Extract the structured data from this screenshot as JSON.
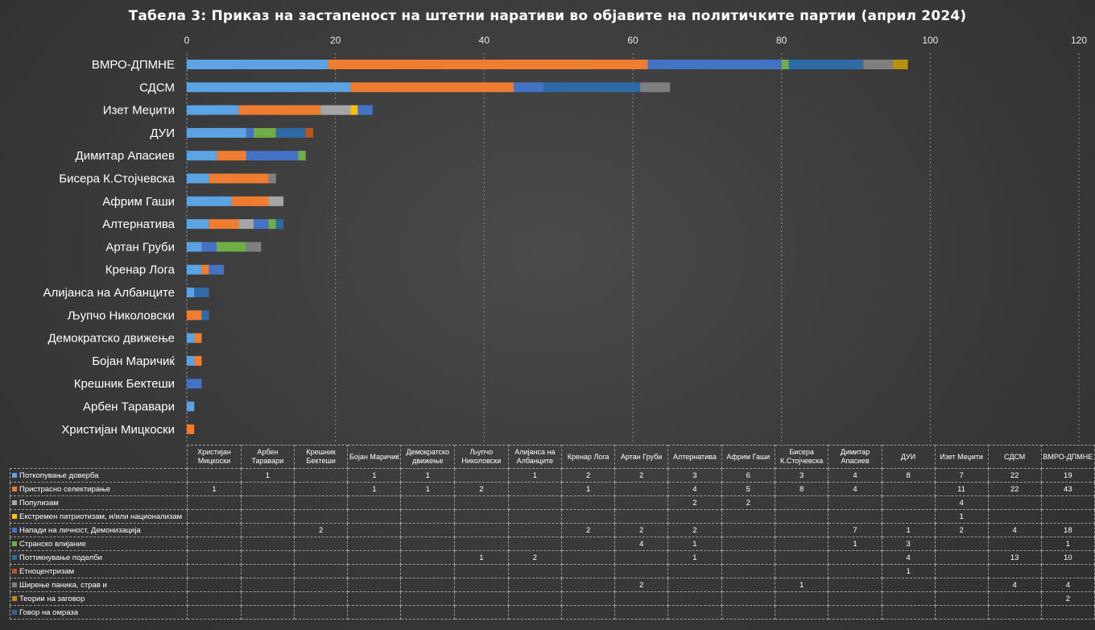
{
  "chart_data": {
    "type": "bar",
    "orientation": "horizontal",
    "stacked": true,
    "title": "Табела 3: Приказ на застапеност на штетни наративи во објавите на политичките партии (април 2024)",
    "xlim": [
      0,
      120
    ],
    "xticks": [
      0,
      20,
      40,
      60,
      80,
      100,
      120
    ],
    "grid": "vertical dashed",
    "legend": "data-table",
    "categories": [
      "Христијан Мицкоски",
      "Арбен Таравари",
      "Крешник Бектеши",
      "Бојан Маричиќ",
      "Демократско движење",
      "Љупчо Николовски",
      "Алијанса на Албанците",
      "Кренар Лога",
      "Артан Груби",
      "Алтернатива",
      "Африм Гаши",
      "Бисера К.Стојчевска",
      "Димитар Апасиев",
      "ДУИ",
      "Изет Меџити",
      "СДСМ",
      "ВМРО-ДПМНЕ"
    ],
    "series": [
      {
        "name": "Поткопување доверба",
        "color": "#5ba3e3",
        "values": [
          null,
          1,
          null,
          1,
          1,
          null,
          1,
          2,
          2,
          3,
          6,
          3,
          4,
          8,
          7,
          22,
          19
        ]
      },
      {
        "name": "Пристрасно селектирање",
        "color": "#ee7d31",
        "values": [
          1,
          null,
          null,
          1,
          1,
          2,
          null,
          1,
          null,
          4,
          5,
          8,
          4,
          null,
          11,
          22,
          43
        ]
      },
      {
        "name": "Популизам",
        "color": "#a5a5a5",
        "values": [
          null,
          null,
          null,
          null,
          null,
          null,
          null,
          null,
          null,
          2,
          2,
          null,
          null,
          null,
          4,
          null,
          null
        ]
      },
      {
        "name": "Екстремен патриотизам, и/или национализам",
        "color": "#ffc000",
        "values": [
          null,
          null,
          null,
          null,
          null,
          null,
          null,
          null,
          null,
          null,
          null,
          null,
          null,
          null,
          1,
          null,
          null
        ]
      },
      {
        "name": "Напади на личност, Демонизација",
        "color": "#4472c4",
        "values": [
          null,
          null,
          2,
          null,
          null,
          null,
          null,
          2,
          2,
          2,
          null,
          null,
          7,
          1,
          2,
          4,
          18
        ]
      },
      {
        "name": "Странско влијание",
        "color": "#70ad47",
        "values": [
          null,
          null,
          null,
          null,
          null,
          null,
          null,
          null,
          4,
          1,
          null,
          null,
          1,
          3,
          null,
          null,
          1
        ]
      },
      {
        "name": "Поттикнување поделби",
        "color": "#2e6aa6",
        "values": [
          null,
          null,
          null,
          null,
          null,
          1,
          2,
          null,
          null,
          1,
          null,
          null,
          null,
          4,
          null,
          13,
          10
        ]
      },
      {
        "name": "Етноцентризам",
        "color": "#b5561d",
        "values": [
          null,
          null,
          null,
          null,
          null,
          null,
          null,
          null,
          null,
          null,
          null,
          null,
          null,
          1,
          null,
          null,
          null
        ]
      },
      {
        "name": "Ширење паника, страв и",
        "color": "#7f7f7f",
        "values": [
          null,
          null,
          null,
          null,
          null,
          null,
          null,
          null,
          2,
          null,
          null,
          1,
          null,
          null,
          null,
          4,
          4
        ]
      },
      {
        "name": "Теории на заговор",
        "color": "#b8910c",
        "values": [
          null,
          null,
          null,
          null,
          null,
          null,
          null,
          null,
          null,
          null,
          null,
          null,
          null,
          null,
          null,
          null,
          2
        ]
      },
      {
        "name": "Говор на омраза",
        "color": "#3a5f93",
        "values": [
          null,
          null,
          null,
          null,
          null,
          null,
          null,
          null,
          null,
          null,
          null,
          null,
          null,
          null,
          null,
          null,
          null
        ]
      }
    ]
  }
}
